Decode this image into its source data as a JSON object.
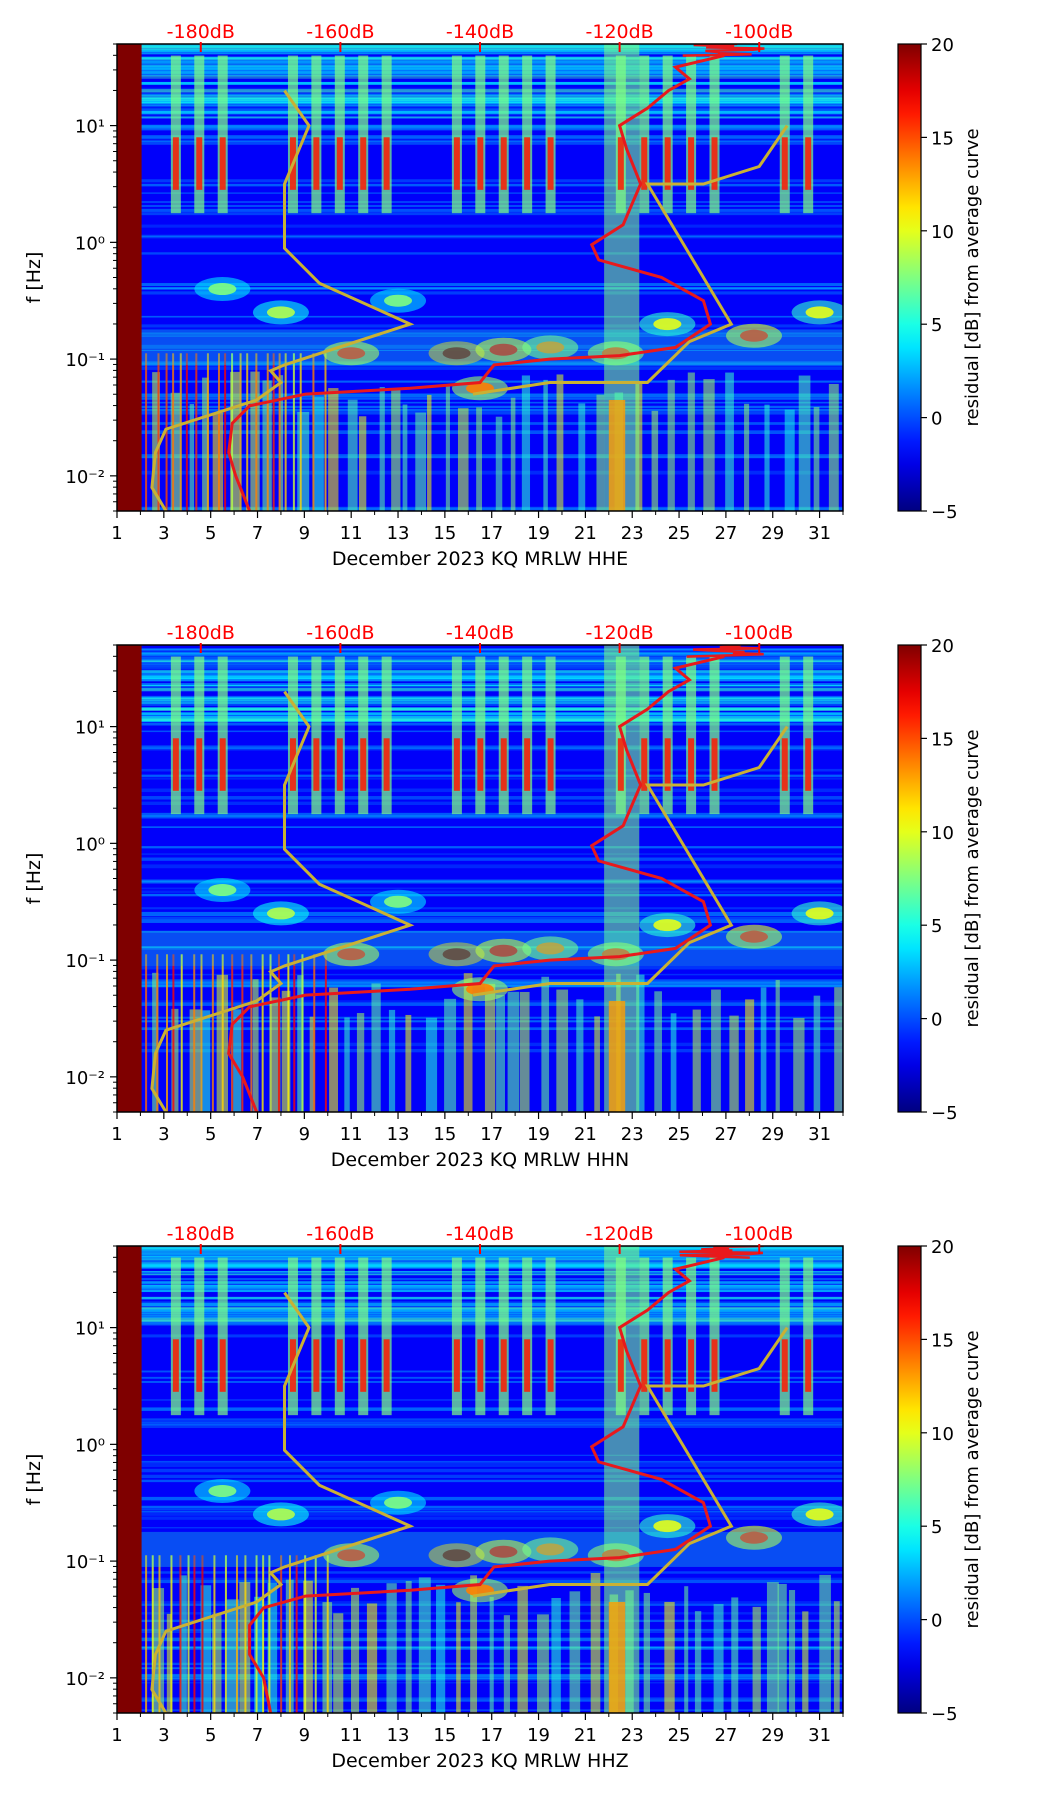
{
  "colors": {
    "psd_curve": "#e8191c",
    "noise_model": "#c9b134",
    "db_label": "#ff0000",
    "axis": "#000000"
  },
  "colorbar": {
    "label": "residual [dB] from average curve",
    "range": [
      -5,
      20
    ],
    "ticks": [
      "20",
      "15",
      "10",
      "5",
      "0",
      "−5"
    ],
    "colormap": "jet"
  },
  "axes": {
    "ylabel": "f [Hz]",
    "x_tick_labels": [
      "1",
      "3",
      "5",
      "7",
      "9",
      "11",
      "13",
      "15",
      "17",
      "19",
      "21",
      "23",
      "25",
      "27",
      "29",
      "31"
    ],
    "y_tick_labels": [
      "10¹",
      "10⁰",
      "10⁻¹",
      "10⁻²"
    ],
    "db_labels": [
      "-180dB",
      "-160dB",
      "-140dB",
      "-120dB",
      "-100dB"
    ]
  },
  "chart_data": [
    {
      "type": "heatmap",
      "title": "December 2023 KQ MRLW  HHE",
      "xlabel": "December 2023 KQ MRLW  HHE",
      "ylabel": "f [Hz]",
      "xlim": [
        1,
        32
      ],
      "ylim_hz": [
        0.005,
        50
      ],
      "colorbar_range_db": [
        -5,
        20
      ],
      "psd_curve_db_vs_logf": [
        [
          -173,
          -2.3
        ],
        [
          -175,
          -2.0
        ],
        [
          -176,
          -1.8
        ],
        [
          -175.5,
          -1.55
        ],
        [
          -173,
          -1.4
        ],
        [
          -165,
          -1.3
        ],
        [
          -150,
          -1.25
        ],
        [
          -140,
          -1.2
        ],
        [
          -138,
          -1.05
        ],
        [
          -130,
          -1.0
        ],
        [
          -120,
          -0.97
        ],
        [
          -112,
          -0.9
        ],
        [
          -107,
          -0.7
        ],
        [
          -108,
          -0.5
        ],
        [
          -114,
          -0.3
        ],
        [
          -123,
          -0.15
        ],
        [
          -124,
          -0.02
        ],
        [
          -119.5,
          0.15
        ],
        [
          -117,
          0.5
        ],
        [
          -119,
          0.8
        ],
        [
          -120,
          1.0
        ],
        [
          -116,
          1.15
        ],
        [
          -113,
          1.3
        ],
        [
          -110,
          1.4
        ],
        [
          -112,
          1.5
        ],
        [
          -105,
          1.6
        ]
      ],
      "noise_model_db_vs_logf": [
        [
          -185,
          -2.3
        ],
        [
          -187,
          -2.1
        ],
        [
          -186.5,
          -1.8
        ],
        [
          -185,
          -1.6
        ],
        [
          -172,
          -1.35
        ],
        [
          -168.5,
          -1.2
        ],
        [
          -170,
          -1.1
        ],
        [
          -168,
          -1.05
        ],
        [
          -150,
          -0.7
        ],
        [
          -163,
          -0.35
        ],
        [
          -168,
          -0.05
        ],
        [
          -168,
          0.5
        ],
        [
          -164.5,
          1.0
        ],
        [
          -168,
          1.3
        ],
        [
          -141,
          -1.3
        ],
        [
          -130,
          -1.2
        ],
        [
          -116,
          -1.2
        ],
        [
          -110,
          -0.85
        ],
        [
          -104,
          -0.7
        ],
        [
          -116,
          0.5
        ],
        [
          -108,
          0.5
        ],
        [
          -100,
          0.65
        ],
        [
          -96,
          1.0
        ]
      ]
    },
    {
      "type": "heatmap",
      "title": "December 2023 KQ MRLW  HHN",
      "xlabel": "December 2023 KQ MRLW  HHN",
      "ylabel": "f [Hz]",
      "xlim": [
        1,
        32
      ],
      "ylim_hz": [
        0.005,
        50
      ],
      "colorbar_range_db": [
        -5,
        20
      ],
      "psd_curve_db_vs_logf": [
        [
          -172,
          -2.3
        ],
        [
          -174,
          -2.0
        ],
        [
          -176,
          -1.8
        ],
        [
          -175.5,
          -1.55
        ],
        [
          -173,
          -1.4
        ],
        [
          -165,
          -1.3
        ],
        [
          -150,
          -1.25
        ],
        [
          -140,
          -1.2
        ],
        [
          -138,
          -1.05
        ],
        [
          -130,
          -1.0
        ],
        [
          -120,
          -0.97
        ],
        [
          -112,
          -0.9
        ],
        [
          -107,
          -0.7
        ],
        [
          -108,
          -0.5
        ],
        [
          -114,
          -0.3
        ],
        [
          -123,
          -0.15
        ],
        [
          -124,
          -0.02
        ],
        [
          -119.5,
          0.15
        ],
        [
          -117,
          0.5
        ],
        [
          -119,
          0.8
        ],
        [
          -120,
          1.0
        ],
        [
          -116,
          1.15
        ],
        [
          -113,
          1.3
        ],
        [
          -110,
          1.4
        ],
        [
          -112,
          1.5
        ],
        [
          -105,
          1.6
        ]
      ],
      "noise_model_db_vs_logf": [
        [
          -185,
          -2.3
        ],
        [
          -187,
          -2.1
        ],
        [
          -186.5,
          -1.8
        ],
        [
          -185,
          -1.6
        ],
        [
          -172,
          -1.35
        ],
        [
          -168.5,
          -1.2
        ],
        [
          -170,
          -1.1
        ],
        [
          -168,
          -1.05
        ],
        [
          -150,
          -0.7
        ],
        [
          -163,
          -0.35
        ],
        [
          -168,
          -0.05
        ],
        [
          -168,
          0.5
        ],
        [
          -164.5,
          1.0
        ],
        [
          -168,
          1.3
        ],
        [
          -141,
          -1.3
        ],
        [
          -130,
          -1.2
        ],
        [
          -116,
          -1.2
        ],
        [
          -110,
          -0.85
        ],
        [
          -104,
          -0.7
        ],
        [
          -116,
          0.5
        ],
        [
          -108,
          0.5
        ],
        [
          -100,
          0.65
        ],
        [
          -96,
          1.0
        ]
      ]
    },
    {
      "type": "heatmap",
      "title": "December 2023 KQ MRLW  HHZ",
      "xlabel": "December 2023 KQ MRLW  HHZ",
      "ylabel": "f [Hz]",
      "xlim": [
        1,
        32
      ],
      "ylim_hz": [
        0.005,
        50
      ],
      "colorbar_range_db": [
        -5,
        20
      ],
      "psd_curve_db_vs_logf": [
        [
          -170,
          -2.3
        ],
        [
          -171,
          -2.0
        ],
        [
          -173,
          -1.8
        ],
        [
          -173,
          -1.55
        ],
        [
          -171,
          -1.4
        ],
        [
          -165,
          -1.3
        ],
        [
          -150,
          -1.25
        ],
        [
          -140,
          -1.2
        ],
        [
          -138,
          -1.05
        ],
        [
          -130,
          -1.0
        ],
        [
          -120,
          -0.97
        ],
        [
          -112,
          -0.9
        ],
        [
          -107,
          -0.7
        ],
        [
          -108,
          -0.5
        ],
        [
          -114,
          -0.3
        ],
        [
          -123,
          -0.15
        ],
        [
          -124,
          -0.02
        ],
        [
          -119.5,
          0.15
        ],
        [
          -117,
          0.5
        ],
        [
          -119,
          0.8
        ],
        [
          -120,
          1.0
        ],
        [
          -116,
          1.15
        ],
        [
          -113,
          1.3
        ],
        [
          -110,
          1.4
        ],
        [
          -112,
          1.5
        ],
        [
          -105,
          1.6
        ]
      ],
      "noise_model_db_vs_logf": [
        [
          -185,
          -2.3
        ],
        [
          -187,
          -2.1
        ],
        [
          -186.5,
          -1.8
        ],
        [
          -185,
          -1.6
        ],
        [
          -172,
          -1.35
        ],
        [
          -168.5,
          -1.2
        ],
        [
          -170,
          -1.1
        ],
        [
          -168,
          -1.05
        ],
        [
          -150,
          -0.7
        ],
        [
          -163,
          -0.35
        ],
        [
          -168,
          -0.05
        ],
        [
          -168,
          0.5
        ],
        [
          -164.5,
          1.0
        ],
        [
          -168,
          1.3
        ],
        [
          -141,
          -1.3
        ],
        [
          -130,
          -1.2
        ],
        [
          -116,
          -1.2
        ],
        [
          -110,
          -0.85
        ],
        [
          -104,
          -0.7
        ],
        [
          -116,
          0.5
        ],
        [
          -108,
          0.5
        ],
        [
          -100,
          0.65
        ],
        [
          -96,
          1.0
        ]
      ]
    }
  ]
}
